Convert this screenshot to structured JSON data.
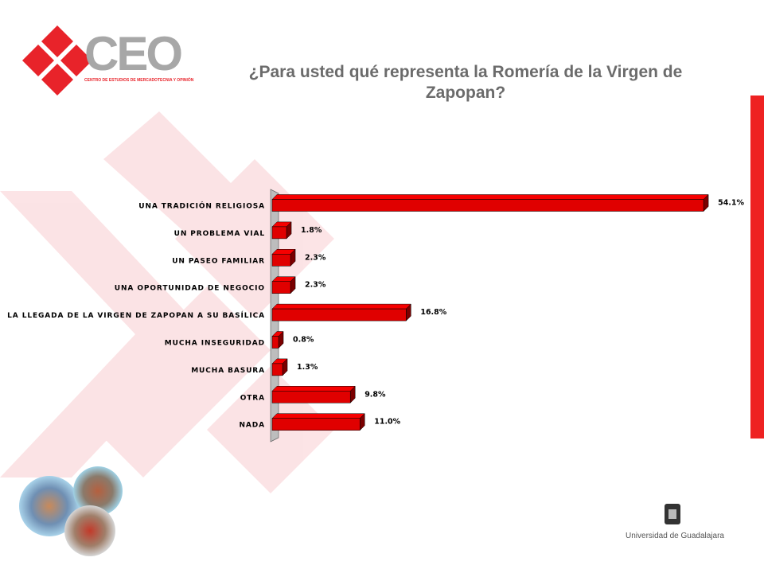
{
  "header": {
    "logo": "CEO",
    "logo_subtitle": "CENTRO DE ESTUDIOS DE MERCADOTECNIA Y OPINIÓN",
    "footer": "Universidad de Guadalajara"
  },
  "chart_data": {
    "type": "bar",
    "orientation": "horizontal",
    "title": "¿Para usted qué representa la Romería de la Virgen de Zapopan?",
    "categories": [
      "UNA TRADICIÓN RELIGIOSA",
      "UN PROBLEMA VIAL",
      "UN PASEO FAMILIAR",
      "UNA OPORTUNIDAD DE NEGOCIO",
      "LA LLEGADA DE LA VIRGEN DE ZAPOPAN A SU BASÍLICA",
      "MUCHA INSEGURIDAD",
      "MUCHA BASURA",
      "OTRA",
      "NADA"
    ],
    "values": [
      54.1,
      1.8,
      2.3,
      2.3,
      16.8,
      0.8,
      1.3,
      9.8,
      11.0
    ],
    "value_labels": [
      "54.1%",
      "1.8%",
      "2.3%",
      "2.3%",
      "16.8%",
      "0.8%",
      "1.3%",
      "9.8%",
      "11.0%"
    ],
    "color": "#e00000"
  }
}
